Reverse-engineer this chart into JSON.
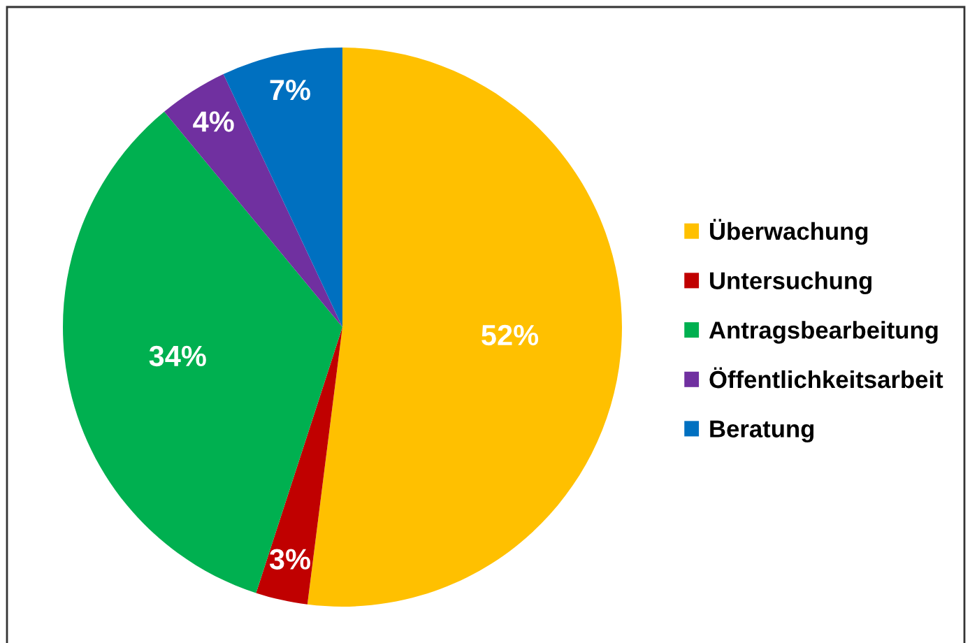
{
  "chart_data": {
    "type": "pie",
    "categories": [
      "Überwachung",
      "Untersuchung",
      "Antragsbearbeitung",
      "Öffentlichkeitsarbeit",
      "Beratung"
    ],
    "values": [
      52,
      3,
      34,
      4,
      7
    ],
    "colors": [
      "#ffc000",
      "#c00000",
      "#00b050",
      "#7030a0",
      "#0070c0"
    ],
    "value_labels": [
      "52%",
      "3%",
      "34%",
      "4%",
      "7%"
    ],
    "legend": "right"
  }
}
